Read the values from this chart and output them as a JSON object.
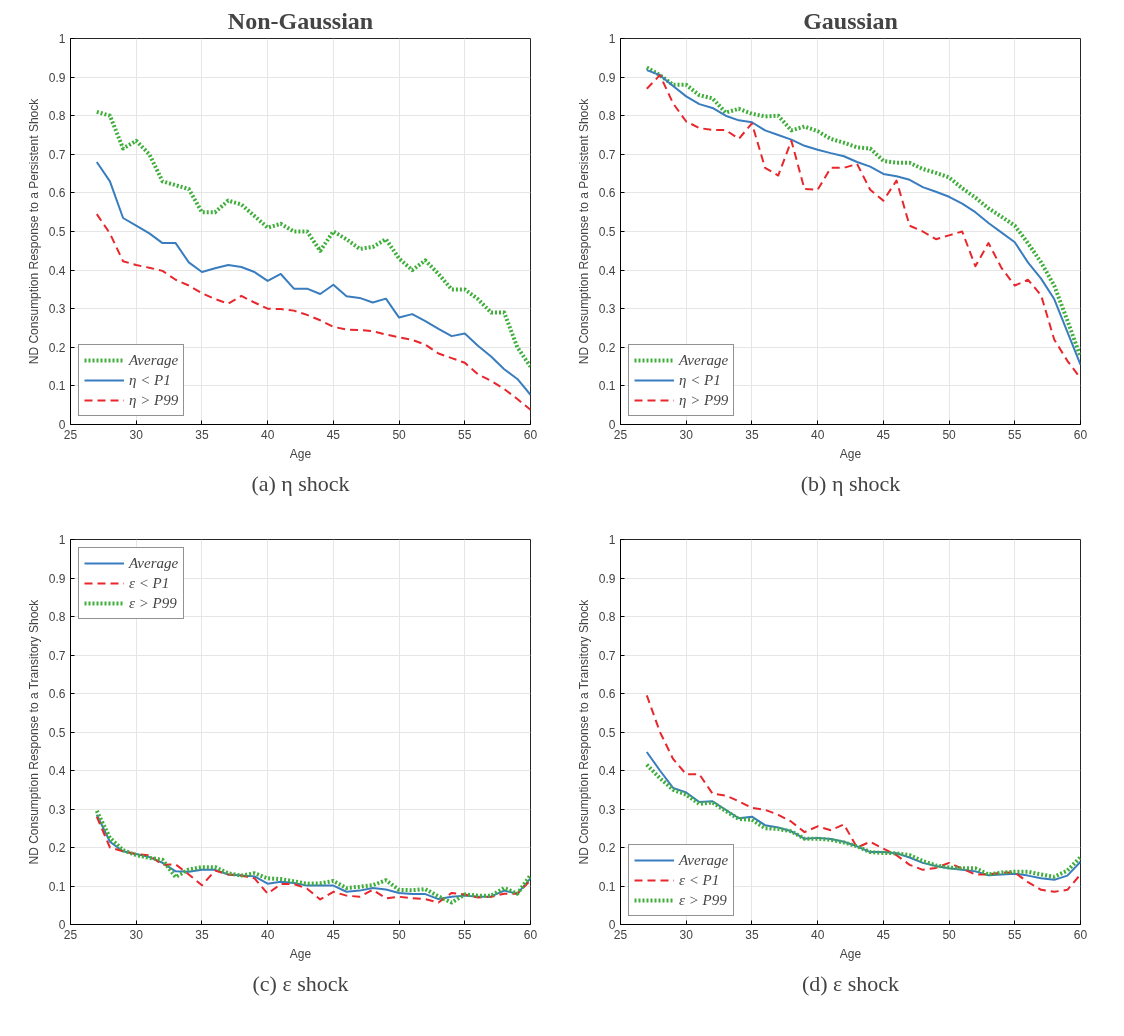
{
  "chart_data": [
    {
      "type": "line",
      "title": "Non-Gaussian",
      "xlabel": "Age",
      "ylabel": "ND Consumption Response to a Persistent Shock",
      "annotations": [
        "(a) η shock"
      ],
      "x": [
        27,
        28,
        29,
        30,
        31,
        32,
        33,
        34,
        35,
        36,
        37,
        38,
        39,
        40,
        41,
        42,
        43,
        44,
        45,
        46,
        47,
        48,
        49,
        50,
        51,
        52,
        53,
        54,
        55,
        56,
        57,
        58,
        59,
        60
      ],
      "xlim": [
        25,
        60
      ],
      "xticks": [
        25,
        30,
        35,
        40,
        45,
        50,
        55,
        60
      ],
      "ylim": [
        0,
        1
      ],
      "yticks": [
        0,
        0.1,
        0.2,
        0.3,
        0.4,
        0.5,
        0.6,
        0.7,
        0.8,
        0.9,
        1
      ],
      "grid": true,
      "legend": "bottom left",
      "series": [
        {
          "name": "Average",
          "color": "#3fae3a",
          "line_style": "dotted",
          "values": [
            0.81,
            0.8,
            0.715,
            0.735,
            0.7,
            0.63,
            0.62,
            0.61,
            0.55,
            0.55,
            0.58,
            0.57,
            0.54,
            0.51,
            0.52,
            0.5,
            0.5,
            0.45,
            0.5,
            0.48,
            0.455,
            0.46,
            0.48,
            0.43,
            0.4,
            0.425,
            0.39,
            0.35,
            0.35,
            0.325,
            0.29,
            0.29,
            0.2,
            0.15
          ]
        },
        {
          "name": "η < P1",
          "color": "#3a7dbf",
          "line_style": "solid",
          "values": [
            0.68,
            0.63,
            0.535,
            0.515,
            0.495,
            0.47,
            0.47,
            0.42,
            0.395,
            0.405,
            0.413,
            0.408,
            0.395,
            0.372,
            0.39,
            0.352,
            0.352,
            0.338,
            0.362,
            0.332,
            0.328,
            0.316,
            0.326,
            0.277,
            0.286,
            0.268,
            0.248,
            0.229,
            0.236,
            0.204,
            0.176,
            0.143,
            0.118,
            0.077
          ]
        },
        {
          "name": "η > P99",
          "color": "#e8262b",
          "line_style": "dashed",
          "values": [
            0.545,
            0.495,
            0.423,
            0.413,
            0.406,
            0.398,
            0.375,
            0.36,
            0.34,
            0.325,
            0.313,
            0.333,
            0.316,
            0.3,
            0.299,
            0.295,
            0.284,
            0.27,
            0.253,
            0.246,
            0.245,
            0.242,
            0.233,
            0.226,
            0.219,
            0.207,
            0.184,
            0.172,
            0.16,
            0.13,
            0.113,
            0.092,
            0.066,
            0.038
          ]
        }
      ]
    },
    {
      "type": "line",
      "title": "Gaussian",
      "xlabel": "Age",
      "ylabel": "ND Consumption Response to a Persistent Shock",
      "annotations": [
        "(b) η shock"
      ],
      "x": [
        27,
        28,
        29,
        30,
        31,
        32,
        33,
        34,
        35,
        36,
        37,
        38,
        39,
        40,
        41,
        42,
        43,
        44,
        45,
        46,
        47,
        48,
        49,
        50,
        51,
        52,
        53,
        54,
        55,
        56,
        57,
        58,
        59,
        60
      ],
      "xlim": [
        25,
        60
      ],
      "xticks": [
        25,
        30,
        35,
        40,
        45,
        50,
        55,
        60
      ],
      "ylim": [
        0,
        1
      ],
      "yticks": [
        0,
        0.1,
        0.2,
        0.3,
        0.4,
        0.5,
        0.6,
        0.7,
        0.8,
        0.9,
        1
      ],
      "grid": true,
      "legend": "bottom left",
      "series": [
        {
          "name": "Average",
          "color": "#3fae3a",
          "line_style": "dotted",
          "values": [
            0.925,
            0.905,
            0.88,
            0.88,
            0.853,
            0.845,
            0.808,
            0.818,
            0.805,
            0.798,
            0.8,
            0.762,
            0.772,
            0.76,
            0.74,
            0.73,
            0.718,
            0.715,
            0.683,
            0.678,
            0.678,
            0.662,
            0.652,
            0.64,
            0.612,
            0.588,
            0.56,
            0.538,
            0.515,
            0.47,
            0.42,
            0.36,
            0.27,
            0.175
          ]
        },
        {
          "name": "η < P1",
          "color": "#3a7dbf",
          "line_style": "solid",
          "values": [
            0.918,
            0.905,
            0.877,
            0.85,
            0.83,
            0.82,
            0.8,
            0.788,
            0.783,
            0.762,
            0.75,
            0.738,
            0.722,
            0.712,
            0.703,
            0.695,
            0.68,
            0.668,
            0.649,
            0.643,
            0.634,
            0.615,
            0.603,
            0.59,
            0.572,
            0.55,
            0.522,
            0.497,
            0.472,
            0.42,
            0.378,
            0.325,
            0.24,
            0.155
          ]
        },
        {
          "name": "η > P99",
          "color": "#e8262b",
          "line_style": "dashed",
          "values": [
            0.87,
            0.905,
            0.832,
            0.785,
            0.768,
            0.763,
            0.763,
            0.74,
            0.78,
            0.665,
            0.645,
            0.735,
            0.61,
            0.608,
            0.665,
            0.665,
            0.675,
            0.608,
            0.58,
            0.632,
            0.515,
            0.5,
            0.48,
            0.49,
            0.5,
            0.41,
            0.47,
            0.405,
            0.36,
            0.375,
            0.335,
            0.22,
            0.165,
            0.12
          ]
        }
      ]
    },
    {
      "type": "line",
      "xlabel": "Age",
      "ylabel": "ND Consumption Response to a Transitory Shock",
      "annotations": [
        "(c) ε shock"
      ],
      "x": [
        27,
        28,
        29,
        30,
        31,
        32,
        33,
        34,
        35,
        36,
        37,
        38,
        39,
        40,
        41,
        42,
        43,
        44,
        45,
        46,
        47,
        48,
        49,
        50,
        51,
        52,
        53,
        54,
        55,
        56,
        57,
        58,
        59,
        60
      ],
      "xlim": [
        25,
        60
      ],
      "xticks": [
        25,
        30,
        35,
        40,
        45,
        50,
        55,
        60
      ],
      "ylim": [
        0,
        1
      ],
      "yticks": [
        0,
        0.1,
        0.2,
        0.3,
        0.4,
        0.5,
        0.6,
        0.7,
        0.8,
        0.9,
        1
      ],
      "grid": true,
      "legend": "top left",
      "series": [
        {
          "name": "Average",
          "color": "#3a7dbf",
          "line_style": "solid",
          "values": [
            0.285,
            0.215,
            0.19,
            0.183,
            0.175,
            0.16,
            0.138,
            0.137,
            0.142,
            0.142,
            0.13,
            0.127,
            0.125,
            0.106,
            0.111,
            0.108,
            0.101,
            0.101,
            0.101,
            0.085,
            0.088,
            0.095,
            0.091,
            0.082,
            0.079,
            0.079,
            0.066,
            0.072,
            0.075,
            0.072,
            0.073,
            0.088,
            0.08,
            0.12
          ]
        },
        {
          "name": "ε < P1",
          "color": "#e8262b",
          "line_style": "dashed",
          "values": [
            0.28,
            0.2,
            0.19,
            0.183,
            0.18,
            0.155,
            0.156,
            0.13,
            0.102,
            0.14,
            0.13,
            0.127,
            0.12,
            0.08,
            0.105,
            0.105,
            0.093,
            0.065,
            0.085,
            0.075,
            0.072,
            0.09,
            0.068,
            0.072,
            0.068,
            0.066,
            0.057,
            0.082,
            0.078,
            0.07,
            0.072,
            0.08,
            0.08,
            0.115
          ]
        },
        {
          "name": "ε > P99",
          "color": "#3fae3a",
          "line_style": "dotted",
          "values": [
            0.295,
            0.225,
            0.193,
            0.18,
            0.173,
            0.168,
            0.123,
            0.143,
            0.149,
            0.149,
            0.133,
            0.127,
            0.133,
            0.12,
            0.118,
            0.112,
            0.106,
            0.107,
            0.113,
            0.095,
            0.098,
            0.102,
            0.115,
            0.09,
            0.089,
            0.092,
            0.073,
            0.057,
            0.078,
            0.075,
            0.075,
            0.095,
            0.08,
            0.128
          ]
        }
      ]
    },
    {
      "type": "line",
      "xlabel": "Age",
      "ylabel": "ND Consumption Response to a Transitory Shock",
      "annotations": [
        "(d) ε shock"
      ],
      "x": [
        27,
        28,
        29,
        30,
        31,
        32,
        33,
        34,
        35,
        36,
        37,
        38,
        39,
        40,
        41,
        42,
        43,
        44,
        45,
        46,
        47,
        48,
        49,
        50,
        51,
        52,
        53,
        54,
        55,
        56,
        57,
        58,
        59,
        60
      ],
      "xlim": [
        25,
        60
      ],
      "xticks": [
        25,
        30,
        35,
        40,
        45,
        50,
        55,
        60
      ],
      "ylim": [
        0,
        1
      ],
      "yticks": [
        0,
        0.1,
        0.2,
        0.3,
        0.4,
        0.5,
        0.6,
        0.7,
        0.8,
        0.9,
        1
      ],
      "grid": true,
      "legend": "bottom left",
      "series": [
        {
          "name": "Average",
          "color": "#3a7dbf",
          "line_style": "solid",
          "values": [
            0.448,
            0.4,
            0.355,
            0.343,
            0.318,
            0.32,
            0.298,
            0.276,
            0.28,
            0.258,
            0.252,
            0.242,
            0.223,
            0.225,
            0.222,
            0.215,
            0.203,
            0.188,
            0.188,
            0.185,
            0.174,
            0.16,
            0.152,
            0.146,
            0.142,
            0.138,
            0.128,
            0.13,
            0.132,
            0.127,
            0.12,
            0.116,
            0.127,
            0.163
          ]
        },
        {
          "name": "ε < P1",
          "color": "#e8262b",
          "line_style": "dashed",
          "values": [
            0.595,
            0.5,
            0.43,
            0.39,
            0.39,
            0.34,
            0.335,
            0.32,
            0.303,
            0.298,
            0.285,
            0.267,
            0.24,
            0.255,
            0.245,
            0.26,
            0.2,
            0.215,
            0.197,
            0.18,
            0.155,
            0.142,
            0.147,
            0.16,
            0.145,
            0.13,
            0.13,
            0.135,
            0.135,
            0.11,
            0.09,
            0.085,
            0.09,
            0.13
          ]
        },
        {
          "name": "ε > P99",
          "color": "#3fae3a",
          "line_style": "dotted",
          "values": [
            0.415,
            0.38,
            0.35,
            0.337,
            0.313,
            0.317,
            0.295,
            0.274,
            0.272,
            0.25,
            0.248,
            0.242,
            0.223,
            0.223,
            0.22,
            0.213,
            0.203,
            0.188,
            0.186,
            0.185,
            0.18,
            0.165,
            0.153,
            0.148,
            0.146,
            0.146,
            0.13,
            0.135,
            0.137,
            0.137,
            0.13,
            0.124,
            0.14,
            0.175
          ]
        }
      ]
    }
  ]
}
